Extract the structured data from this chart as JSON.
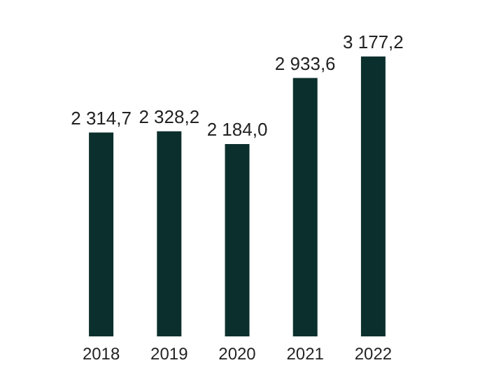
{
  "chart_data": {
    "type": "bar",
    "categories": [
      "2018",
      "2019",
      "2020",
      "2021",
      "2022"
    ],
    "values": [
      2314.7,
      2328.2,
      2184.0,
      2933.6,
      3177.2
    ],
    "value_labels": [
      "2 314,7",
      "2 328,2",
      "2 184,0",
      "2 933,6",
      "3 177,2"
    ],
    "color": "#0b2f2c",
    "grid": false,
    "legend": false
  }
}
